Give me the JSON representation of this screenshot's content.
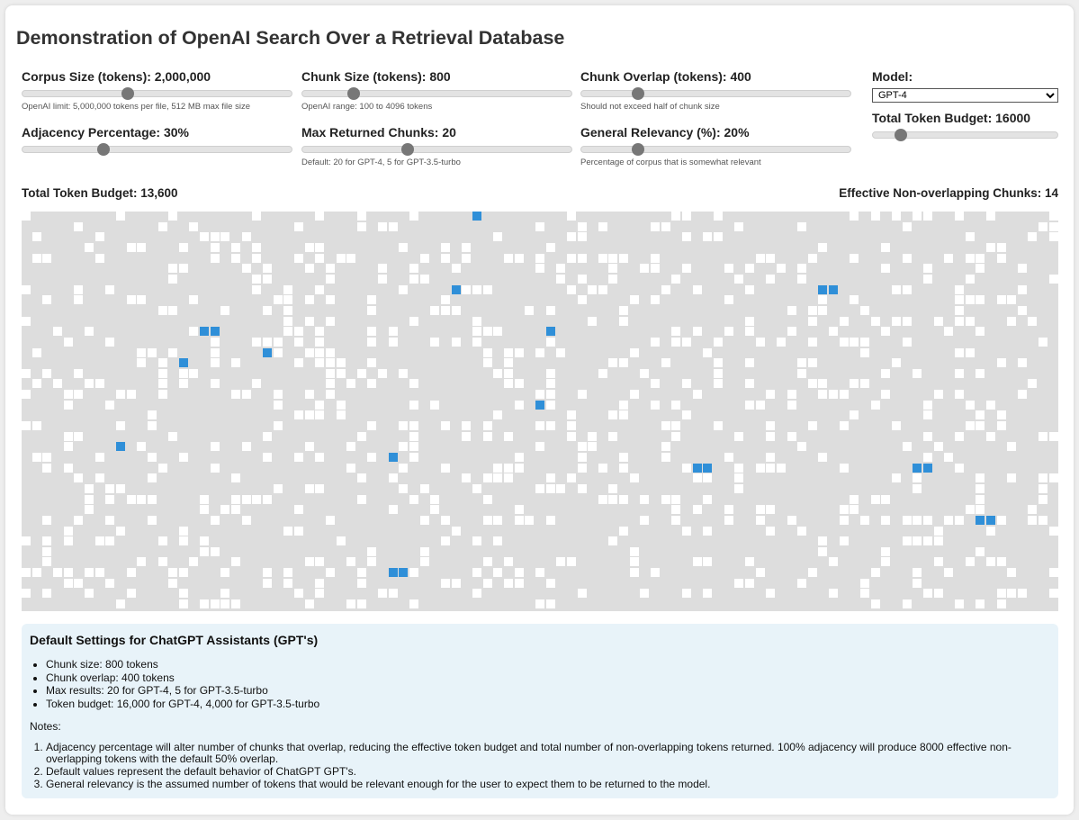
{
  "page": {
    "title": "Demonstration of OpenAI Search Over a Retrieval Database"
  },
  "controls": {
    "corpus": {
      "label": "Corpus Size (tokens): 2,000,000",
      "hint": "OpenAI limit: 5,000,000 tokens per file, 512 MB max file size",
      "level": 0.39
    },
    "chunk": {
      "label": "Chunk Size (tokens): 800",
      "hint": "OpenAI range: 100 to 4096 tokens",
      "level": 0.19
    },
    "overlap": {
      "label": "Chunk Overlap (tokens): 400",
      "hint": "Should not exceed half of chunk size",
      "level": 0.21
    },
    "adjacency": {
      "label": "Adjacency Percentage: 30%",
      "hint": "",
      "level": 0.3
    },
    "max_chunks": {
      "label": "Max Returned Chunks: 20",
      "hint": "Default: 20 for GPT-4, 5 for GPT-3.5-turbo",
      "level": 0.39
    },
    "relevancy": {
      "label": "General Relevancy (%): 20%",
      "hint": "Percentage of corpus that is somewhat relevant",
      "level": 0.21
    },
    "model": {
      "label": "Model:",
      "selected": "GPT-4"
    },
    "budget": {
      "label": "Total Token Budget: 16000",
      "level": 0.15
    }
  },
  "stats": {
    "total_budget": "Total Token Budget: 13,600",
    "effective_chunks": "Effective Non-overlapping Chunks: 14"
  },
  "colors": {
    "cell_empty": "#dddddd",
    "cell_relevant": "#ffffff",
    "cell_selected": "#2f8fd8"
  },
  "info": {
    "heading": "Default Settings for ChatGPT Assistants (GPT's)",
    "defaults": [
      "Chunk size: 800 tokens",
      "Chunk overlap: 400 tokens",
      "Max results: 20 for GPT-4, 5 for GPT-3.5-turbo",
      "Token budget: 16,000 for GPT-4, 4,000 for GPT-3.5-turbo"
    ],
    "notes_label": "Notes:",
    "notes": [
      "Adjacency percentage will alter number of chunks that overlap, reducing the effective token budget and total number of non-overlapping tokens returned. 100% adjacency will produce 8000 effective non-overlapping tokens with the default 50% overlap.",
      "Default values represent the default behavior of ChatGPT GPT's.",
      "General relevancy is the assumed number of tokens that would be relevant enough for the user to expect them to be returned to the model."
    ]
  }
}
